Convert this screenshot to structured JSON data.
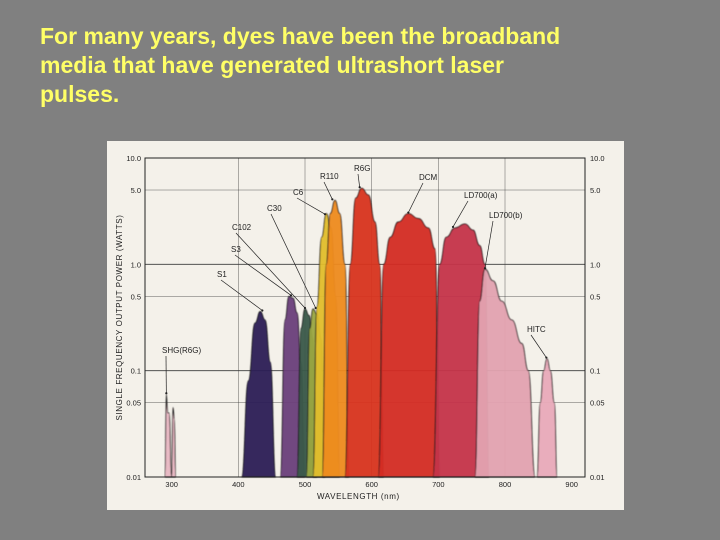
{
  "slide": {
    "title_lines": [
      "For many years, dyes have been the broadband",
      "media that have generated ultrashort laser",
      "pulses."
    ],
    "background": "#808080",
    "title_color": "#ffff66"
  },
  "chart_data": {
    "type": "area",
    "title": "",
    "xlabel": "WAVELENGTH (nm)",
    "ylabel": "SINGLE FREQUENCY OUTPUT POWER (WATTS)",
    "xlim": [
      260,
      920
    ],
    "ylim": [
      0.01,
      10.0
    ],
    "yscale": "log",
    "x_ticks": [
      "300",
      "400",
      "500",
      "600",
      "700",
      "800",
      "900"
    ],
    "y_ticks_left": [
      "10.0",
      "5.0",
      "1.0",
      "0.5",
      "0.1",
      "0.05",
      "0.01"
    ],
    "y_ticks_right": [
      "10.0",
      "5.0",
      "1.0",
      "0.5",
      "0.1",
      "0.05",
      "0.01"
    ],
    "grid": true,
    "series": [
      {
        "name": "SHG (R6G)",
        "color": "#e8b6c2",
        "x": [
          290,
          292,
          294,
          296,
          300,
          302,
          304,
          306
        ],
        "y": [
          0.01,
          0.06,
          0.04,
          0.04,
          0.01,
          0.045,
          0.035,
          0.01
        ]
      },
      {
        "name": "S1",
        "color": "#2b1a55",
        "x": [
          405,
          415,
          425,
          433,
          440,
          448,
          456
        ],
        "y": [
          0.01,
          0.08,
          0.28,
          0.36,
          0.3,
          0.12,
          0.01
        ]
      },
      {
        "name": "S3",
        "color": "#6a3f7a",
        "x": [
          463,
          470,
          476,
          482,
          488,
          494,
          500
        ],
        "y": [
          0.01,
          0.3,
          0.5,
          0.48,
          0.35,
          0.12,
          0.01
        ]
      },
      {
        "name": "C102",
        "color": "#3a5a4a",
        "x": [
          488,
          494,
          500,
          506,
          512,
          518
        ],
        "y": [
          0.01,
          0.25,
          0.38,
          0.33,
          0.2,
          0.01
        ]
      },
      {
        "name": "C30",
        "color": "#9aa640",
        "x": [
          502,
          507,
          512,
          518,
          524,
          530
        ],
        "y": [
          0.01,
          0.25,
          0.38,
          0.34,
          0.2,
          0.01
        ]
      },
      {
        "name": "C6",
        "color": "#e2bd2a",
        "x": [
          512,
          518,
          525,
          532,
          539,
          546,
          552
        ],
        "y": [
          0.01,
          0.4,
          1.8,
          3.0,
          2.2,
          0.5,
          0.01
        ]
      },
      {
        "name": "R110",
        "color": "#ee8a1c",
        "x": [
          526,
          532,
          538,
          545,
          552,
          560,
          566
        ],
        "y": [
          0.01,
          1.0,
          3.0,
          4.0,
          3.0,
          1.0,
          0.01
        ]
      },
      {
        "name": "R6G",
        "color": "#d8341b",
        "x": [
          560,
          568,
          576,
          585,
          595,
          605,
          612,
          618
        ],
        "y": [
          0.01,
          1.0,
          4.2,
          5.2,
          4.5,
          2.5,
          1.0,
          0.01
        ]
      },
      {
        "name": "DCM",
        "color": "#d42a25",
        "x": [
          610,
          618,
          628,
          640,
          655,
          670,
          685,
          695,
          702
        ],
        "y": [
          0.01,
          1.0,
          1.8,
          2.5,
          3.0,
          2.7,
          2.2,
          1.4,
          0.01
        ]
      },
      {
        "name": "LD700 (a)",
        "color": "#c4324a",
        "x": [
          692,
          702,
          712,
          725,
          740,
          752,
          762,
          770,
          776
        ],
        "y": [
          0.01,
          1.0,
          1.8,
          2.2,
          2.4,
          2.1,
          1.5,
          1.0,
          0.01
        ]
      },
      {
        "name": "LD700 (b)",
        "color": "#e3a2b0",
        "x": [
          755,
          762,
          770,
          782,
          795,
          810,
          825,
          835,
          845
        ],
        "y": [
          0.01,
          0.45,
          0.9,
          0.7,
          0.45,
          0.3,
          0.18,
          0.1,
          0.01
        ]
      },
      {
        "name": "HITC",
        "color": "#e9aab9",
        "x": [
          848,
          853,
          858,
          863,
          868,
          874,
          878
        ],
        "y": [
          0.01,
          0.05,
          0.1,
          0.13,
          0.1,
          0.05,
          0.01
        ]
      }
    ],
    "annotations": [
      {
        "text": "SHG(R6G)",
        "x": 292,
        "y": 0.06
      },
      {
        "text": "S1",
        "x": 436,
        "y": 0.36
      },
      {
        "text": "S3",
        "x": 479,
        "y": 0.5
      },
      {
        "text": "C102",
        "x": 500,
        "y": 0.38
      },
      {
        "text": "C30",
        "x": 516,
        "y": 0.38
      },
      {
        "text": "C6",
        "x": 530,
        "y": 2.9
      },
      {
        "text": "R110",
        "x": 541,
        "y": 4.0
      },
      {
        "text": "R6G",
        "x": 582,
        "y": 5.2
      },
      {
        "text": "DCM",
        "x": 655,
        "y": 3.0
      },
      {
        "text": "LD700(a)",
        "x": 722,
        "y": 2.2
      },
      {
        "text": "LD700(b)",
        "x": 770,
        "y": 0.9
      },
      {
        "text": "HITC",
        "x": 862,
        "y": 0.13
      }
    ]
  }
}
